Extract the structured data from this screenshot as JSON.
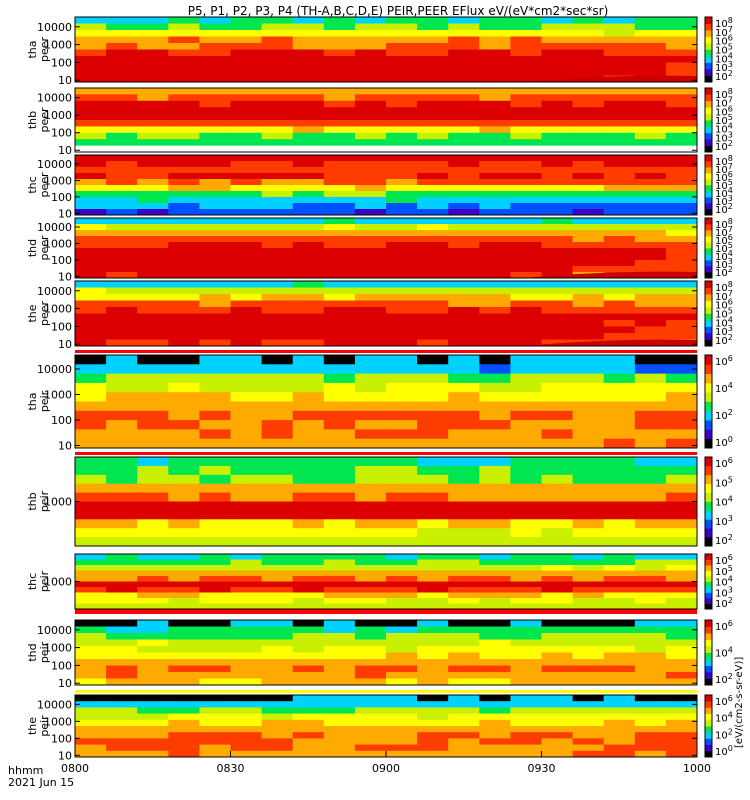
{
  "chart_data": {
    "type": "heatmap",
    "title": "P5, P1, P2, P3, P4 (TH-A,B,C,D,E) PEIR,PEER EFlux eV/(eV*cm2*sec*sr)",
    "xlabel": "hhmm",
    "date_label": "2021 Jun 15",
    "x_ticks": [
      "0800",
      "0830",
      "0900",
      "0930",
      "1000"
    ],
    "x_range": [
      "08:00",
      "10:00"
    ],
    "colorbar_unit": "[eV/(cm2-s-sr-eV)]",
    "colormap": [
      "#000000",
      "#3c00c8",
      "#0050ff",
      "#00d2ff",
      "#00e650",
      "#c8f000",
      "#ffff00",
      "#ffaa00",
      "#ff3c00",
      "#dc0000"
    ],
    "panels": [
      {
        "probe": "tha",
        "instrument": "peer",
        "y_scale": "log",
        "y_ticks": [
          "10",
          "100",
          "1000",
          "10000"
        ],
        "colorbar_ticks": [
          "10^2",
          "10^3",
          "10^4",
          "10^5",
          "10^6",
          "10^7",
          "10^8"
        ],
        "energy_profile": [
          3.5,
          4.5,
          6.0,
          7.2,
          7.6,
          8.6,
          9.3,
          9.6,
          9.5,
          9.2
        ],
        "late_trend": -1.0,
        "low_energy_edge": true,
        "noise_floor": false
      },
      {
        "probe": "thb",
        "instrument": "peer",
        "y_scale": "log",
        "y_ticks": [
          "10",
          "100",
          "1000",
          "10000"
        ],
        "colorbar_ticks": [
          "10^2",
          "10^3",
          "10^4",
          "10^5",
          "10^6",
          "10^7",
          "10^8"
        ],
        "energy_profile": [
          7.0,
          7.8,
          8.5,
          9.4,
          9.2,
          8.0,
          6.2,
          4.5,
          4.0,
          -1
        ],
        "late_trend": 0.0,
        "low_energy_edge": false,
        "noise_floor": false
      },
      {
        "probe": "thc",
        "instrument": "peer",
        "y_scale": "log",
        "y_ticks": [
          "10",
          "100",
          "1000",
          "10000"
        ],
        "colorbar_ticks": [
          "10^2",
          "10^3",
          "10^4",
          "10^5",
          "10^6",
          "10^7",
          "10^8"
        ],
        "energy_profile": [
          9.5,
          8.6,
          8.0,
          8.6,
          7.6,
          6.4,
          4.2,
          3.4,
          2.4,
          1.8
        ],
        "late_trend": 0.0,
        "low_energy_edge": false,
        "noise_floor": false
      },
      {
        "probe": "thd",
        "instrument": "peer",
        "y_scale": "log",
        "y_ticks": [
          "10",
          "100",
          "1000",
          "10000"
        ],
        "colorbar_ticks": [
          "10^2",
          "10^3",
          "10^4",
          "10^5",
          "10^6",
          "10^7",
          "10^8"
        ],
        "energy_profile": [
          3.2,
          5.2,
          7.0,
          8.0,
          8.6,
          9.3,
          9.4,
          9.3,
          9.0,
          8.6
        ],
        "late_trend": -1.8,
        "low_energy_edge": true,
        "noise_floor": false
      },
      {
        "probe": "the",
        "instrument": "peer",
        "y_scale": "log",
        "y_ticks": [
          "10",
          "100",
          "1000",
          "10000"
        ],
        "colorbar_ticks": [
          "10^2",
          "10^3",
          "10^4",
          "10^5",
          "10^6",
          "10^7",
          "10^8"
        ],
        "energy_profile": [
          3.2,
          5.2,
          6.6,
          7.8,
          8.6,
          9.3,
          9.5,
          9.4,
          9.1,
          8.7
        ],
        "late_trend": -1.4,
        "low_energy_edge": true,
        "noise_floor": false
      },
      {
        "probe": "tha",
        "instrument": "peir",
        "y_scale": "log",
        "y_ticks": [
          "10",
          "100",
          "1000",
          "10000"
        ],
        "colorbar_ticks": [
          "10^0",
          "10^2",
          "10^4",
          "10^6"
        ],
        "energy_profile": [
          1.2,
          2.8,
          4.6,
          5.6,
          6.3,
          7.0,
          7.4,
          7.6,
          7.4,
          7.1
        ],
        "late_trend": 0.3,
        "low_energy_edge": false,
        "noise_floor": true
      },
      {
        "probe": "thb",
        "instrument": "peir",
        "y_scale": "log",
        "y_ticks": [
          "1000"
        ],
        "colorbar_ticks": [
          "10^2",
          "10^3",
          "10^4",
          "10^5",
          "10^6"
        ],
        "energy_profile": [
          3.6,
          4.2,
          4.6,
          7.0,
          7.4,
          9.4,
          9.0,
          6.6,
          5.8,
          5.0
        ],
        "late_trend": 0.0,
        "low_energy_edge": false,
        "noise_floor": false
      },
      {
        "probe": "thc",
        "instrument": "peir",
        "y_scale": "log",
        "y_ticks": [
          "1000"
        ],
        "colorbar_ticks": [
          "10^2",
          "10^3",
          "10^4",
          "10^5",
          "10^6"
        ],
        "energy_profile": [
          3.6,
          4.2,
          5.2,
          7.0,
          7.6,
          9.2,
          8.4,
          6.6,
          5.6,
          5.0
        ],
        "late_trend": 0.0,
        "low_energy_edge": false,
        "noise_floor": false
      },
      {
        "probe": "thd",
        "instrument": "peir",
        "y_scale": "log",
        "y_ticks": [
          "10",
          "100",
          "1000",
          "10000"
        ],
        "colorbar_ticks": [
          "10^2",
          "10^4",
          "10^6"
        ],
        "energy_profile": [
          2.4,
          3.8,
          4.6,
          5.2,
          5.6,
          6.4,
          7.0,
          7.4,
          7.2,
          6.8
        ],
        "late_trend": 0.2,
        "low_energy_edge": false,
        "noise_floor": true
      },
      {
        "probe": "the",
        "instrument": "peir",
        "y_scale": "log",
        "y_ticks": [
          "10",
          "100",
          "1000",
          "10000"
        ],
        "colorbar_ticks": [
          "10^0",
          "10^2",
          "10^4",
          "10^6"
        ],
        "energy_profile": [
          1.2,
          3.0,
          4.6,
          5.6,
          6.3,
          7.0,
          7.4,
          7.6,
          7.4,
          7.1
        ],
        "late_trend": 0.3,
        "low_energy_edge": false,
        "noise_floor": true
      }
    ]
  }
}
